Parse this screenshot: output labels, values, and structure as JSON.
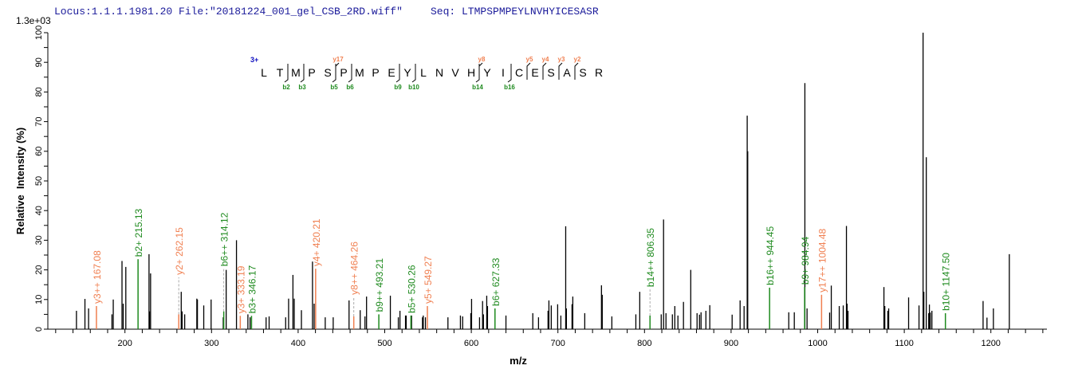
{
  "header": {
    "locus": "Locus:1.1.1.1981.20 File:\"20181224_001_gel_CSB_2RD.wiff\"",
    "seq": "Seq: LTMPSPMPEYLNVHYICESASR",
    "scale": "1.3e+03"
  },
  "colors": {
    "b": "#1e8a1e",
    "y": "#f07f50",
    "peak": "#000000",
    "charge": "#1010c0",
    "title": "#1a1a9a"
  },
  "sequence": {
    "charge": "3+",
    "residues": [
      "L",
      "T",
      "M",
      "P",
      "S",
      "P",
      "M",
      "P",
      "E",
      "Y",
      "L",
      "N",
      "V",
      "H",
      "Y",
      "I",
      "C",
      "E",
      "S",
      "A",
      "S",
      "R"
    ],
    "b_ions": [
      {
        "label": "b2",
        "after": 2
      },
      {
        "label": "b3",
        "after": 3
      },
      {
        "label": "b5",
        "after": 5
      },
      {
        "label": "b6",
        "after": 6
      },
      {
        "label": "b9",
        "after": 9
      },
      {
        "label": "b10",
        "after": 10
      },
      {
        "label": "b14",
        "after": 14
      },
      {
        "label": "b16",
        "after": 16
      }
    ],
    "y_ions": [
      {
        "label": "y17",
        "n": 17
      },
      {
        "label": "y8",
        "n": 8
      },
      {
        "label": "y5",
        "n": 5
      },
      {
        "label": "y4",
        "n": 4
      },
      {
        "label": "y3",
        "n": 3
      },
      {
        "label": "y2",
        "n": 2
      }
    ]
  },
  "chart_data": {
    "type": "bar",
    "title": "",
    "xlabel": "m/z",
    "ylabel": "Relative  Intensity (%)",
    "xlim": [
      120,
      1265
    ],
    "ylim": [
      0,
      100
    ],
    "x_ticks": [
      200,
      300,
      400,
      500,
      600,
      700,
      800,
      900,
      1000,
      1100,
      1200
    ],
    "y_ticks": [
      0,
      10,
      20,
      30,
      40,
      50,
      60,
      70,
      80,
      90,
      100
    ],
    "peaks": [
      [
        144,
        6.2
      ],
      [
        153.8,
        10.2
      ],
      [
        158,
        7
      ],
      [
        185,
        5
      ],
      [
        186.5,
        10
      ],
      [
        196.6,
        23
      ],
      [
        198,
        8.6
      ],
      [
        201,
        21
      ],
      [
        227.8,
        25.3
      ],
      [
        228.4,
        6
      ],
      [
        229.6,
        18.8
      ],
      [
        265,
        12.6
      ],
      [
        266,
        6
      ],
      [
        269,
        5
      ],
      [
        283,
        10.3
      ],
      [
        283.7,
        10
      ],
      [
        291,
        8
      ],
      [
        299.5,
        10
      ],
      [
        313.5,
        4
      ],
      [
        316.9,
        20
      ],
      [
        328.8,
        30
      ],
      [
        342,
        5
      ],
      [
        344.5,
        4
      ],
      [
        363,
        4
      ],
      [
        366.5,
        4.3
      ],
      [
        385.6,
        4
      ],
      [
        389,
        10.3
      ],
      [
        394,
        18.3
      ],
      [
        395.5,
        10.3
      ],
      [
        403.8,
        6.4
      ],
      [
        416.6,
        22.8
      ],
      [
        418.5,
        8.6
      ],
      [
        431.3,
        4
      ],
      [
        440.5,
        4
      ],
      [
        458.8,
        9.7
      ],
      [
        471.7,
        6.4
      ],
      [
        477.2,
        4.3
      ],
      [
        479,
        11
      ],
      [
        506.5,
        11.3
      ],
      [
        515.7,
        4
      ],
      [
        517.6,
        6.2
      ],
      [
        524,
        4.6
      ],
      [
        524.8,
        4.6
      ],
      [
        531,
        4.6
      ],
      [
        543.6,
        4
      ],
      [
        544.5,
        4.6
      ],
      [
        547,
        4
      ],
      [
        573,
        4
      ],
      [
        587.4,
        4.6
      ],
      [
        590,
        4.3
      ],
      [
        599.4,
        5.4
      ],
      [
        600.3,
        10.2
      ],
      [
        609.5,
        4
      ],
      [
        613,
        9.5
      ],
      [
        614,
        5
      ],
      [
        617.8,
        11.3
      ],
      [
        618.7,
        7.8
      ],
      [
        640,
        4.6
      ],
      [
        671,
        5.4
      ],
      [
        677.6,
        4
      ],
      [
        688.6,
        6.2
      ],
      [
        689.6,
        9.7
      ],
      [
        692.3,
        8
      ],
      [
        699.7,
        8.4
      ],
      [
        703.4,
        4.6
      ],
      [
        709,
        34.7
      ],
      [
        709.8,
        7
      ],
      [
        716.3,
        8.4
      ],
      [
        717.2,
        11
      ],
      [
        731,
        5.4
      ],
      [
        750.3,
        14.8
      ],
      [
        751.2,
        11.6
      ],
      [
        762.3,
        4.3
      ],
      [
        790,
        5
      ],
      [
        794.5,
        12.6
      ],
      [
        819.3,
        5
      ],
      [
        822,
        37
      ],
      [
        824.8,
        5.4
      ],
      [
        832.2,
        5
      ],
      [
        835,
        7.8
      ],
      [
        838.6,
        4.6
      ],
      [
        845,
        9.2
      ],
      [
        853.4,
        20
      ],
      [
        860.7,
        5.4
      ],
      [
        863.5,
        4.9
      ],
      [
        865.3,
        5.7
      ],
      [
        870.9,
        6.2
      ],
      [
        875.4,
        8.1
      ],
      [
        901.2,
        4.9
      ],
      [
        910.4,
        9.7
      ],
      [
        915,
        7.8
      ],
      [
        918.6,
        72
      ],
      [
        919.2,
        60
      ],
      [
        966.6,
        5.7
      ],
      [
        973,
        5.7
      ],
      [
        985.2,
        83
      ],
      [
        987.7,
        7
      ],
      [
        1013.8,
        5.6
      ],
      [
        1015.7,
        14.7
      ],
      [
        1024.9,
        7.8
      ],
      [
        1029.5,
        8
      ],
      [
        1033.2,
        34.8
      ],
      [
        1034,
        8.6
      ],
      [
        1035,
        6.2
      ],
      [
        1076.5,
        14.2
      ],
      [
        1077.5,
        7.8
      ],
      [
        1081,
        6.2
      ],
      [
        1082,
        7
      ],
      [
        1105,
        10.7
      ],
      [
        1117,
        8
      ],
      [
        1121.7,
        100
      ],
      [
        1122.6,
        12.6
      ],
      [
        1125.4,
        58
      ],
      [
        1128.2,
        5.4
      ],
      [
        1129,
        8.3
      ],
      [
        1130,
        5.6
      ],
      [
        1131.9,
        6.2
      ],
      [
        1191,
        9.5
      ],
      [
        1195.5,
        3.9
      ],
      [
        1202.9,
        7
      ],
      [
        1221.3,
        25.3
      ]
    ],
    "annotations": [
      {
        "label": "y3++ 167.08",
        "mz": 167.08,
        "intensity": 7.8,
        "type": "y"
      },
      {
        "label": "b2+ 215.13",
        "mz": 215.13,
        "intensity": 23.6,
        "type": "b"
      },
      {
        "label": "y2+ 262.15",
        "mz": 262.15,
        "intensity": 5,
        "type": "y",
        "label_at": 17.5
      },
      {
        "label": "b6++ 314.12",
        "mz": 314.12,
        "intensity": 6,
        "type": "b",
        "label_at": 20.4
      },
      {
        "label": "y3+ 333.19",
        "mz": 333.19,
        "intensity": 4.5,
        "type": "y"
      },
      {
        "label": "b3+ 346.17",
        "mz": 346.17,
        "intensity": 4.5,
        "type": "b"
      },
      {
        "label": "y4+ 420.21",
        "mz": 420.21,
        "intensity": 20.4,
        "type": "y"
      },
      {
        "label": "y8++ 464.26",
        "mz": 464.26,
        "intensity": 4.3,
        "type": "y",
        "label_at": 10.8
      },
      {
        "label": "b9++ 493.21",
        "mz": 493.21,
        "intensity": 5,
        "type": "b"
      },
      {
        "label": "b5+ 530.26",
        "mz": 530.26,
        "intensity": 4.6,
        "type": "b"
      },
      {
        "label": "y5+ 549.27",
        "mz": 549.27,
        "intensity": 7.8,
        "type": "y"
      },
      {
        "label": "b6+ 627.33",
        "mz": 627.33,
        "intensity": 7,
        "type": "b"
      },
      {
        "label": "b14++ 806.35",
        "mz": 806.35,
        "intensity": 4.6,
        "type": "b",
        "label_at": 13.4
      },
      {
        "label": "b16++ 944.45",
        "mz": 944.45,
        "intensity": 14,
        "type": "b"
      },
      {
        "label": "b9+ 984.94",
        "mz": 984.94,
        "intensity": 14.2,
        "type": "b"
      },
      {
        "label": "y17++ 1004.48",
        "mz": 1004.48,
        "intensity": 11.6,
        "type": "y"
      },
      {
        "label": "b10+ 1147.50",
        "mz": 1147.5,
        "intensity": 5.4,
        "type": "b"
      }
    ]
  }
}
